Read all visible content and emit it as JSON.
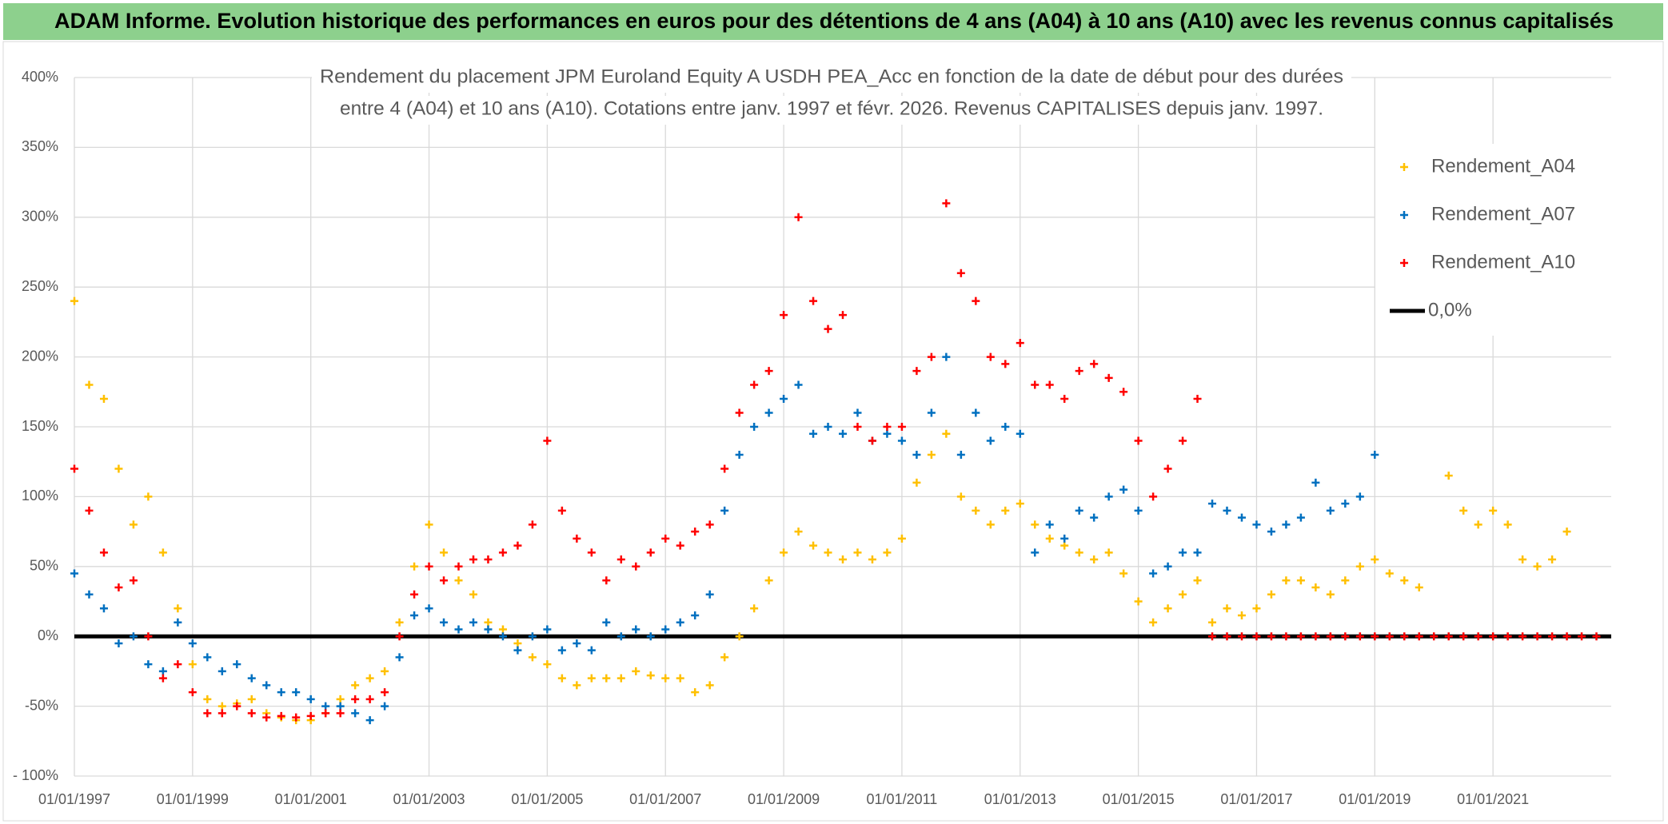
{
  "header": {
    "title": "ADAM Informe. Evolution historique des performances en euros pour des détentions de 4 ans (A04) à 10 ans (A10) avec les revenus connus capitalisés"
  },
  "chart_data": {
    "type": "scatter",
    "title": [
      "Rendement du placement JPM Euroland Equity A USDH PEA_Acc en fonction de la date de début pour des durées",
      "entre 4 (A04) et 10 ans (A10). Cotations entre janv. 1997 et févr. 2026. Revenus CAPITALISES depuis janv. 1997."
    ],
    "x": [
      1997,
      1997.25,
      1997.5,
      1997.75,
      1998,
      1998.25,
      1998.5,
      1998.75,
      1999,
      1999.25,
      1999.5,
      1999.75,
      2000,
      2000.25,
      2000.5,
      2000.75,
      2001,
      2001.25,
      2001.5,
      2001.75,
      2002,
      2002.25,
      2002.5,
      2002.75,
      2003,
      2003.25,
      2003.5,
      2003.75,
      2004,
      2004.25,
      2004.5,
      2004.75,
      2005,
      2005.25,
      2005.5,
      2005.75,
      2006,
      2006.25,
      2006.5,
      2006.75,
      2007,
      2007.25,
      2007.5,
      2007.75,
      2008,
      2008.25,
      2008.5,
      2008.75,
      2009,
      2009.25,
      2009.5,
      2009.75,
      2010,
      2010.25,
      2010.5,
      2010.75,
      2011,
      2011.25,
      2011.5,
      2011.75,
      2012,
      2012.25,
      2012.5,
      2012.75,
      2013,
      2013.25,
      2013.5,
      2013.75,
      2014,
      2014.25,
      2014.5,
      2014.75,
      2015,
      2015.25,
      2015.5,
      2015.75,
      2016,
      2016.25,
      2016.5,
      2016.75,
      2017,
      2017.25,
      2017.5,
      2017.75,
      2018,
      2018.25,
      2018.5,
      2018.75,
      2019,
      2019.25,
      2019.5,
      2019.75,
      2020,
      2020.25,
      2020.5,
      2020.75,
      2021,
      2021.25,
      2021.5,
      2021.75,
      2022,
      2022.25,
      2022.5,
      2022.75
    ],
    "series": [
      {
        "name": "Rendement_A04",
        "color": "#ffc000",
        "values": [
          240,
          180,
          170,
          120,
          80,
          100,
          60,
          20,
          -20,
          -45,
          -50,
          -48,
          -45,
          -55,
          -58,
          -60,
          -60,
          -55,
          -45,
          -35,
          -30,
          -25,
          10,
          50,
          80,
          60,
          40,
          30,
          10,
          5,
          -5,
          -15,
          -20,
          -30,
          -35,
          -30,
          -30,
          -30,
          -25,
          -28,
          -30,
          -30,
          -40,
          -35,
          -15,
          0,
          20,
          40,
          60,
          75,
          65,
          60,
          55,
          60,
          55,
          60,
          70,
          110,
          130,
          145,
          100,
          90,
          80,
          90,
          95,
          80,
          70,
          65,
          60,
          55,
          60,
          45,
          25,
          10,
          20,
          30,
          40,
          10,
          20,
          15,
          20,
          30,
          40,
          40,
          35,
          30,
          40,
          50,
          55,
          45,
          40,
          35,
          null,
          115,
          90,
          80,
          90,
          80,
          55,
          50,
          55,
          75,
          null,
          null
        ]
      },
      {
        "name": "Rendement_A07",
        "color": "#0070c0",
        "values": [
          45,
          30,
          20,
          -5,
          0,
          -20,
          -25,
          10,
          -5,
          -15,
          -25,
          -20,
          -30,
          -35,
          -40,
          -40,
          -45,
          -50,
          -50,
          -55,
          -60,
          -50,
          -15,
          15,
          20,
          10,
          5,
          10,
          5,
          0,
          -10,
          0,
          5,
          -10,
          -5,
          -10,
          10,
          0,
          5,
          0,
          5,
          10,
          15,
          30,
          90,
          130,
          150,
          160,
          170,
          180,
          145,
          150,
          145,
          160,
          140,
          145,
          140,
          130,
          160,
          200,
          130,
          160,
          140,
          150,
          145,
          60,
          80,
          70,
          90,
          85,
          100,
          105,
          90,
          45,
          50,
          60,
          60,
          95,
          90,
          85,
          80,
          75,
          80,
          85,
          110,
          90,
          95,
          100,
          130,
          null,
          null,
          null,
          null,
          null,
          null,
          null,
          null,
          null,
          null,
          null,
          null,
          null,
          null,
          null
        ]
      },
      {
        "name": "Rendement_A10",
        "color": "#ff0000",
        "values": [
          120,
          90,
          60,
          35,
          40,
          0,
          -30,
          -20,
          -40,
          -55,
          -55,
          -50,
          -55,
          -58,
          -57,
          -58,
          -57,
          -55,
          -55,
          -45,
          -45,
          -40,
          0,
          30,
          50,
          40,
          50,
          55,
          55,
          60,
          65,
          80,
          140,
          90,
          70,
          60,
          40,
          55,
          50,
          60,
          70,
          65,
          75,
          80,
          120,
          160,
          180,
          190,
          230,
          300,
          240,
          220,
          230,
          150,
          140,
          150,
          150,
          190,
          200,
          310,
          260,
          240,
          200,
          195,
          210,
          180,
          180,
          170,
          190,
          195,
          185,
          175,
          140,
          100,
          120,
          140,
          170,
          0,
          0,
          0,
          0,
          0,
          0,
          0,
          0,
          0,
          0,
          0,
          0,
          0,
          0,
          0,
          0,
          0,
          0,
          0,
          0,
          0,
          0,
          0,
          0,
          0,
          0,
          0
        ]
      }
    ],
    "reference_line": {
      "name": "0,0%",
      "value": 0,
      "color": "#000000"
    },
    "xlim": [
      1997,
      2023
    ],
    "xticks": [
      {
        "value": 1997,
        "label": "01/01/1997"
      },
      {
        "value": 1999,
        "label": "01/01/1999"
      },
      {
        "value": 2001,
        "label": "01/01/2001"
      },
      {
        "value": 2003,
        "label": "01/01/2003"
      },
      {
        "value": 2005,
        "label": "01/01/2005"
      },
      {
        "value": 2007,
        "label": "01/01/2007"
      },
      {
        "value": 2009,
        "label": "01/01/2009"
      },
      {
        "value": 2011,
        "label": "01/01/2011"
      },
      {
        "value": 2013,
        "label": "01/01/2013"
      },
      {
        "value": 2015,
        "label": "01/01/2015"
      },
      {
        "value": 2017,
        "label": "01/01/2017"
      },
      {
        "value": 2019,
        "label": "01/01/2019"
      },
      {
        "value": 2021,
        "label": "01/01/2021"
      }
    ],
    "ylim": [
      -100,
      400
    ],
    "yticks": [
      {
        "value": -100,
        "label": "- 100%"
      },
      {
        "value": -50,
        "label": "-50%"
      },
      {
        "value": 0,
        "label": "0%"
      },
      {
        "value": 50,
        "label": "50%"
      },
      {
        "value": 100,
        "label": "100%"
      },
      {
        "value": 150,
        "label": "150%"
      },
      {
        "value": 200,
        "label": "200%"
      },
      {
        "value": 250,
        "label": "250%"
      },
      {
        "value": 300,
        "label": "300%"
      },
      {
        "value": 350,
        "label": "350%"
      },
      {
        "value": 400,
        "label": "400%"
      }
    ],
    "grid": true,
    "legend": "upper right"
  }
}
